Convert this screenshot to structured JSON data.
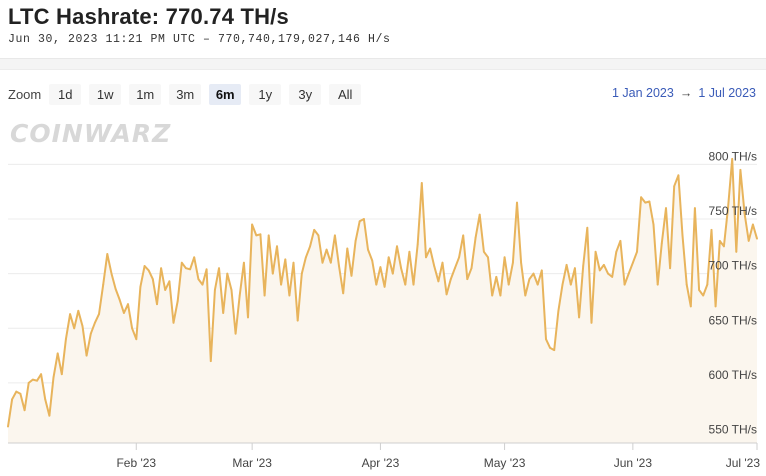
{
  "header": {
    "title": "LTC Hashrate: 770.74 TH/s",
    "subtitle": "Jun 30, 2023 11:21 PM UTC  –  770,740,179,027,146 H/s"
  },
  "toolbar": {
    "zoom_label": "Zoom",
    "buttons": [
      "1d",
      "1w",
      "1m",
      "3m",
      "6m",
      "1y",
      "3y",
      "All"
    ],
    "active": "6m",
    "range_from": "1 Jan 2023",
    "range_arrow": "→",
    "range_to": "1 Jul 2023"
  },
  "watermark": "COINWARZ",
  "colors": {
    "line": "#e8b45c",
    "fill": "#fbf6ee",
    "grid": "#ececec",
    "accent": "#3a5bb8"
  },
  "chart_data": {
    "type": "area",
    "x_start": "2023-01-01",
    "x_end": "2023-07-01",
    "y_unit": "TH/s",
    "ylim": [
      545,
      815
    ],
    "grid": true,
    "x_ticks": [
      {
        "date": "2023-02-01",
        "label": "Feb '23"
      },
      {
        "date": "2023-03-01",
        "label": "Mar '23"
      },
      {
        "date": "2023-04-01",
        "label": "Apr '23"
      },
      {
        "date": "2023-05-01",
        "label": "May '23"
      },
      {
        "date": "2023-06-01",
        "label": "Jun '23"
      },
      {
        "date": "2023-07-01",
        "label": "Jul '23"
      }
    ],
    "y_ticks": [
      {
        "value": 550,
        "label": "550 TH/s"
      },
      {
        "value": 600,
        "label": "600 TH/s"
      },
      {
        "value": 650,
        "label": "650 TH/s"
      },
      {
        "value": 700,
        "label": "700 TH/s"
      },
      {
        "value": 750,
        "label": "750 TH/s"
      },
      {
        "value": 800,
        "label": "800 TH/s"
      }
    ],
    "series": [
      {
        "values": [
          [
            "2023-01-01",
            560
          ],
          [
            "2023-01-02",
            585
          ],
          [
            "2023-01-03",
            592
          ],
          [
            "2023-01-04",
            590
          ],
          [
            "2023-01-05",
            575
          ],
          [
            "2023-01-06",
            600
          ],
          [
            "2023-01-07",
            603
          ],
          [
            "2023-01-08",
            602
          ],
          [
            "2023-01-09",
            608
          ],
          [
            "2023-01-10",
            585
          ],
          [
            "2023-01-11",
            570
          ],
          [
            "2023-01-12",
            605
          ],
          [
            "2023-01-13",
            627
          ],
          [
            "2023-01-14",
            608
          ],
          [
            "2023-01-15",
            640
          ],
          [
            "2023-01-16",
            663
          ],
          [
            "2023-01-17",
            650
          ],
          [
            "2023-01-18",
            666
          ],
          [
            "2023-01-19",
            652
          ],
          [
            "2023-01-20",
            625
          ],
          [
            "2023-01-21",
            645
          ],
          [
            "2023-01-22",
            655
          ],
          [
            "2023-01-23",
            663
          ],
          [
            "2023-01-24",
            690
          ],
          [
            "2023-01-25",
            718
          ],
          [
            "2023-01-26",
            700
          ],
          [
            "2023-01-27",
            686
          ],
          [
            "2023-01-28",
            676
          ],
          [
            "2023-01-29",
            664
          ],
          [
            "2023-01-30",
            672
          ],
          [
            "2023-01-31",
            650
          ],
          [
            "2023-02-01",
            640
          ],
          [
            "2023-02-02",
            688
          ],
          [
            "2023-02-03",
            707
          ],
          [
            "2023-02-04",
            703
          ],
          [
            "2023-02-05",
            695
          ],
          [
            "2023-02-06",
            672
          ],
          [
            "2023-02-07",
            705
          ],
          [
            "2023-02-08",
            685
          ],
          [
            "2023-02-09",
            693
          ],
          [
            "2023-02-10",
            655
          ],
          [
            "2023-02-11",
            675
          ],
          [
            "2023-02-12",
            710
          ],
          [
            "2023-02-13",
            705
          ],
          [
            "2023-02-14",
            704
          ],
          [
            "2023-02-15",
            715
          ],
          [
            "2023-02-16",
            695
          ],
          [
            "2023-02-17",
            690
          ],
          [
            "2023-02-18",
            704
          ],
          [
            "2023-02-19",
            620
          ],
          [
            "2023-02-20",
            685
          ],
          [
            "2023-02-21",
            705
          ],
          [
            "2023-02-22",
            664
          ],
          [
            "2023-02-23",
            700
          ],
          [
            "2023-02-24",
            685
          ],
          [
            "2023-02-25",
            645
          ],
          [
            "2023-02-26",
            680
          ],
          [
            "2023-02-27",
            710
          ],
          [
            "2023-02-28",
            660
          ],
          [
            "2023-03-01",
            745
          ],
          [
            "2023-03-02",
            735
          ],
          [
            "2023-03-03",
            736
          ],
          [
            "2023-03-04",
            680
          ],
          [
            "2023-03-05",
            735
          ],
          [
            "2023-03-06",
            700
          ],
          [
            "2023-03-07",
            725
          ],
          [
            "2023-03-08",
            690
          ],
          [
            "2023-03-09",
            713
          ],
          [
            "2023-03-10",
            680
          ],
          [
            "2023-03-11",
            710
          ],
          [
            "2023-03-12",
            657
          ],
          [
            "2023-03-13",
            700
          ],
          [
            "2023-03-14",
            715
          ],
          [
            "2023-03-15",
            725
          ],
          [
            "2023-03-16",
            740
          ],
          [
            "2023-03-17",
            735
          ],
          [
            "2023-03-18",
            710
          ],
          [
            "2023-03-19",
            722
          ],
          [
            "2023-03-20",
            710
          ],
          [
            "2023-03-21",
            735
          ],
          [
            "2023-03-22",
            707
          ],
          [
            "2023-03-23",
            682
          ],
          [
            "2023-03-24",
            723
          ],
          [
            "2023-03-25",
            698
          ],
          [
            "2023-03-26",
            730
          ],
          [
            "2023-03-27",
            748
          ],
          [
            "2023-03-28",
            750
          ],
          [
            "2023-03-29",
            722
          ],
          [
            "2023-03-30",
            712
          ],
          [
            "2023-03-31",
            690
          ],
          [
            "2023-04-01",
            706
          ],
          [
            "2023-04-02",
            688
          ],
          [
            "2023-04-03",
            715
          ],
          [
            "2023-04-04",
            700
          ],
          [
            "2023-04-05",
            725
          ],
          [
            "2023-04-06",
            705
          ],
          [
            "2023-04-07",
            690
          ],
          [
            "2023-04-08",
            720
          ],
          [
            "2023-04-09",
            690
          ],
          [
            "2023-04-10",
            727
          ],
          [
            "2023-04-11",
            783
          ],
          [
            "2023-04-12",
            715
          ],
          [
            "2023-04-13",
            723
          ],
          [
            "2023-04-14",
            707
          ],
          [
            "2023-04-15",
            693
          ],
          [
            "2023-04-16",
            710
          ],
          [
            "2023-04-17",
            681
          ],
          [
            "2023-04-18",
            695
          ],
          [
            "2023-04-19",
            705
          ],
          [
            "2023-04-20",
            715
          ],
          [
            "2023-04-21",
            735
          ],
          [
            "2023-04-22",
            695
          ],
          [
            "2023-04-23",
            705
          ],
          [
            "2023-04-24",
            733
          ],
          [
            "2023-04-25",
            754
          ],
          [
            "2023-04-26",
            720
          ],
          [
            "2023-04-27",
            715
          ],
          [
            "2023-04-28",
            680
          ],
          [
            "2023-04-29",
            697
          ],
          [
            "2023-04-30",
            680
          ],
          [
            "2023-05-01",
            715
          ],
          [
            "2023-05-02",
            690
          ],
          [
            "2023-05-03",
            710
          ],
          [
            "2023-05-04",
            765
          ],
          [
            "2023-05-05",
            710
          ],
          [
            "2023-05-06",
            680
          ],
          [
            "2023-05-07",
            695
          ],
          [
            "2023-05-08",
            700
          ],
          [
            "2023-05-09",
            690
          ],
          [
            "2023-05-10",
            703
          ],
          [
            "2023-05-11",
            640
          ],
          [
            "2023-05-12",
            632
          ],
          [
            "2023-05-13",
            630
          ],
          [
            "2023-05-14",
            666
          ],
          [
            "2023-05-15",
            690
          ],
          [
            "2023-05-16",
            708
          ],
          [
            "2023-05-17",
            690
          ],
          [
            "2023-05-18",
            705
          ],
          [
            "2023-05-19",
            660
          ],
          [
            "2023-05-20",
            707
          ],
          [
            "2023-05-21",
            742
          ],
          [
            "2023-05-22",
            655
          ],
          [
            "2023-05-23",
            720
          ],
          [
            "2023-05-24",
            703
          ],
          [
            "2023-05-25",
            708
          ],
          [
            "2023-05-26",
            700
          ],
          [
            "2023-05-27",
            697
          ],
          [
            "2023-05-28",
            720
          ],
          [
            "2023-05-29",
            730
          ],
          [
            "2023-05-30",
            690
          ],
          [
            "2023-05-31",
            700
          ],
          [
            "2023-06-01",
            710
          ],
          [
            "2023-06-02",
            720
          ],
          [
            "2023-06-03",
            770
          ],
          [
            "2023-06-04",
            765
          ],
          [
            "2023-06-05",
            766
          ],
          [
            "2023-06-06",
            745
          ],
          [
            "2023-06-07",
            690
          ],
          [
            "2023-06-08",
            728
          ],
          [
            "2023-06-09",
            760
          ],
          [
            "2023-06-10",
            705
          ],
          [
            "2023-06-11",
            780
          ],
          [
            "2023-06-12",
            790
          ],
          [
            "2023-06-13",
            735
          ],
          [
            "2023-06-14",
            690
          ],
          [
            "2023-06-15",
            670
          ],
          [
            "2023-06-16",
            760
          ],
          [
            "2023-06-17",
            685
          ],
          [
            "2023-06-18",
            680
          ],
          [
            "2023-06-19",
            690
          ],
          [
            "2023-06-20",
            740
          ],
          [
            "2023-06-21",
            670
          ],
          [
            "2023-06-22",
            730
          ],
          [
            "2023-06-23",
            725
          ],
          [
            "2023-06-24",
            760
          ],
          [
            "2023-06-25",
            805
          ],
          [
            "2023-06-26",
            720
          ],
          [
            "2023-06-27",
            795
          ],
          [
            "2023-06-28",
            755
          ],
          [
            "2023-06-29",
            730
          ],
          [
            "2023-06-30",
            745
          ],
          [
            "2023-07-01",
            732
          ]
        ]
      }
    ]
  }
}
